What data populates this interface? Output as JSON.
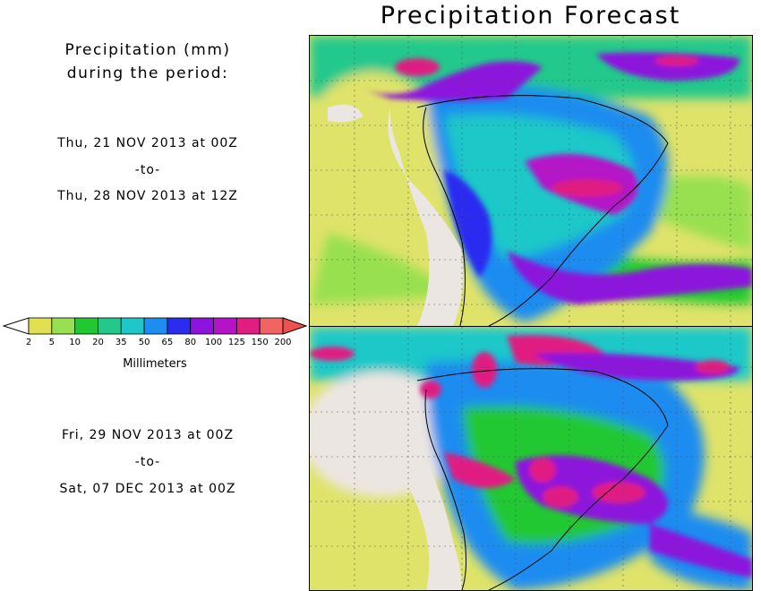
{
  "title": "Precipitation Forecast",
  "header": {
    "line1": "Precipitation (mm)",
    "line2": "during the period:"
  },
  "periods": [
    {
      "start": "Thu, 21 NOV 2013 at 00Z",
      "sep": "-to-",
      "end": "Thu, 28 NOV 2013 at 12Z"
    },
    {
      "start": "Fri, 29 NOV 2013 at 00Z",
      "sep": "-to-",
      "end": "Sat, 07 DEC 2013 at 00Z"
    }
  ],
  "legend": {
    "units": "Millimeters",
    "ticks": [
      "2",
      "5",
      "10",
      "20",
      "35",
      "50",
      "65",
      "80",
      "100",
      "125",
      "150",
      "200"
    ],
    "colors": [
      "#e0e050",
      "#98e050",
      "#22c832",
      "#22c88c",
      "#1ec8c8",
      "#1e8cf0",
      "#2c2cf0",
      "#8c14dc",
      "#b414c8",
      "#e01e82",
      "#f06464"
    ],
    "under_color": "#ffffff",
    "over_color": "#f05050"
  },
  "colors": {
    "land_dry": "#ece6e2",
    "ocean_bg": "#dfe36a"
  }
}
